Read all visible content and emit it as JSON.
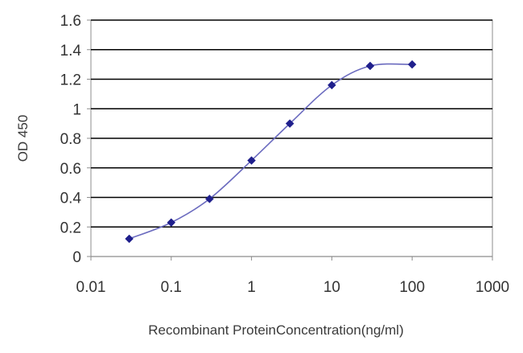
{
  "chart_data": {
    "type": "line",
    "title": "",
    "xlabel": "Recombinant ProteinConcentration(ng/ml)",
    "ylabel": "OD 450",
    "xscale": "log",
    "xlim": [
      0.01,
      1000
    ],
    "ylim": [
      0,
      1.6
    ],
    "x_ticks": [
      0.01,
      0.1,
      1,
      10,
      100,
      1000
    ],
    "x_tick_labels": [
      "0.01",
      "0.1",
      "1",
      "10",
      "100",
      "1000"
    ],
    "y_ticks": [
      0,
      0.2,
      0.4,
      0.6,
      0.8,
      1,
      1.2,
      1.4,
      1.6
    ],
    "y_tick_labels": [
      "0",
      "0.2",
      "0.4",
      "0.6",
      "0.8",
      "1",
      "1.2",
      "1.4",
      "1.6"
    ],
    "grid": "horizontal",
    "legend": "none",
    "series": [
      {
        "x": [
          0.03,
          0.1,
          0.3,
          1,
          3,
          10,
          30,
          100
        ],
        "y": [
          0.12,
          0.23,
          0.39,
          0.65,
          0.9,
          1.16,
          1.29,
          1.3
        ],
        "color": "#1f1f8c",
        "marker": "diamond"
      }
    ],
    "colors": {
      "line": "#6b6bbf",
      "marker": "#1f1f8c",
      "grid": "#000000",
      "frame": "#8c8c8c"
    }
  }
}
